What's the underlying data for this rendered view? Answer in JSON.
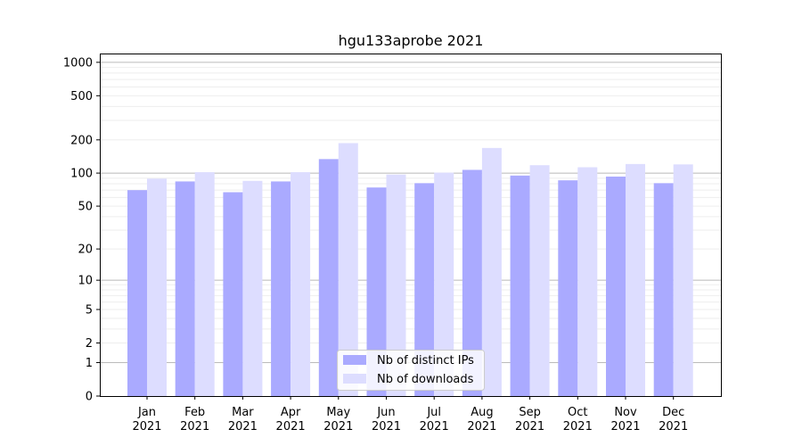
{
  "chart_data": {
    "type": "bar",
    "title": "hgu133aprobe 2021",
    "xlabel": "",
    "ylabel": "",
    "yscale": "log(1+y)",
    "ylim": [
      0,
      1200
    ],
    "yticks": [
      {
        "value": 0,
        "label": "0"
      },
      {
        "value": 1,
        "label": "1"
      },
      {
        "value": 2,
        "label": "2"
      },
      {
        "value": 5,
        "label": "5"
      },
      {
        "value": 10,
        "label": "10"
      },
      {
        "value": 20,
        "label": "20"
      },
      {
        "value": 50,
        "label": "50"
      },
      {
        "value": 100,
        "label": "100"
      },
      {
        "value": 200,
        "label": "200"
      },
      {
        "value": 500,
        "label": "500"
      },
      {
        "value": 1000,
        "label": "1000"
      }
    ],
    "categories": [
      {
        "month": "Jan",
        "year": "2021"
      },
      {
        "month": "Feb",
        "year": "2021"
      },
      {
        "month": "Mar",
        "year": "2021"
      },
      {
        "month": "Apr",
        "year": "2021"
      },
      {
        "month": "May",
        "year": "2021"
      },
      {
        "month": "Jun",
        "year": "2021"
      },
      {
        "month": "Jul",
        "year": "2021"
      },
      {
        "month": "Aug",
        "year": "2021"
      },
      {
        "month": "Sep",
        "year": "2021"
      },
      {
        "month": "Oct",
        "year": "2021"
      },
      {
        "month": "Nov",
        "year": "2021"
      },
      {
        "month": "Dec",
        "year": "2021"
      }
    ],
    "series": [
      {
        "name": "Nb of distinct IPs",
        "color": "#aaaaff",
        "values": [
          70,
          84,
          67,
          84,
          134,
          74,
          81,
          107,
          95,
          86,
          93,
          81
        ]
      },
      {
        "name": "Nb of downloads",
        "color": "#ddddff",
        "values": [
          89,
          102,
          85,
          102,
          187,
          97,
          101,
          169,
          118,
          113,
          121,
          120
        ]
      }
    ],
    "grid": true,
    "legend_position": "bottom-center"
  }
}
